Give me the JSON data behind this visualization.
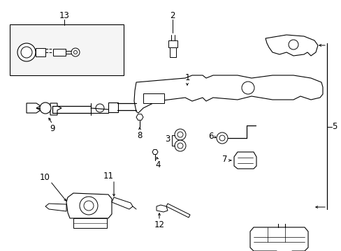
{
  "bg_color": "#ffffff",
  "line_color": "#000000",
  "label_fs": 8.5,
  "lw": 0.7
}
